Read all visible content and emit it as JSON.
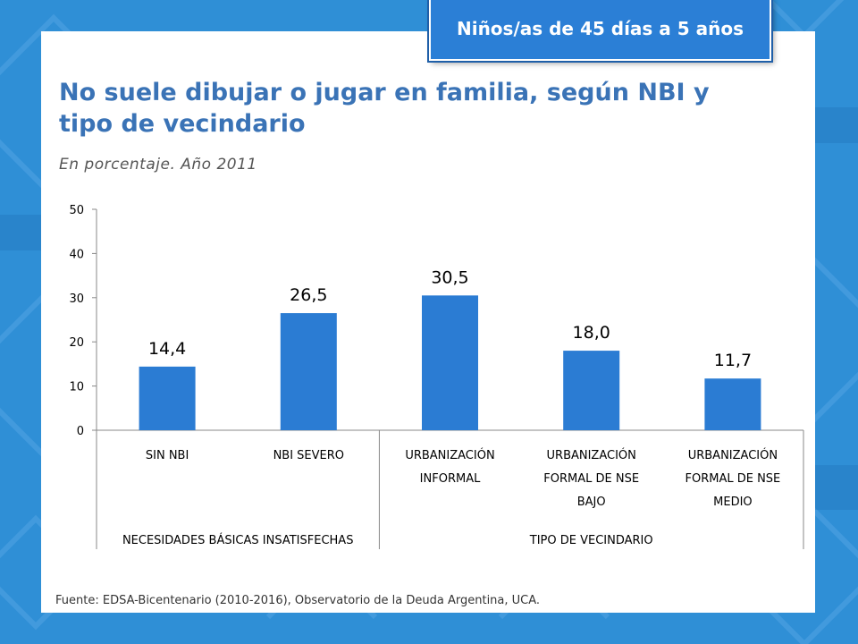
{
  "badge": {
    "text": "Niños/as de 45 días a 5 años"
  },
  "header": {
    "title": "No suele dibujar o jugar en familia, según NBI y tipo de vecindario",
    "subtitle": "En porcentaje. Año 2011"
  },
  "footer": {
    "source": "Fuente: EDSA-Bicentenario (2010-2016), Observatorio de la Deuda Argentina, UCA."
  },
  "colors": {
    "bar": "#2b7cd3",
    "title": "#3a73b6",
    "background": "#2f8fd6"
  },
  "chart_data": {
    "type": "bar",
    "categories": [
      [
        "SIN NBI"
      ],
      [
        "NBI SEVERO"
      ],
      [
        "URBANIZACIÓN",
        "INFORMAL"
      ],
      [
        "URBANIZACIÓN",
        "FORMAL DE NSE",
        "BAJO"
      ],
      [
        "URBANIZACIÓN",
        "FORMAL DE NSE",
        "MEDIO"
      ]
    ],
    "values": [
      14.4,
      26.5,
      30.5,
      18.0,
      11.7
    ],
    "data_labels": [
      "14,4",
      "26,5",
      "30,5",
      "18,0",
      "11,7"
    ],
    "groups": [
      {
        "label": "NECESIDADES BÁSICAS INSATISFECHAS",
        "span": [
          0,
          1
        ]
      },
      {
        "label": "TIPO DE VECINDARIO",
        "span": [
          2,
          4
        ]
      }
    ],
    "yticks": [
      0,
      10,
      20,
      30,
      40,
      50
    ],
    "ylim": [
      0,
      50
    ],
    "grid": false,
    "legend": "none"
  }
}
